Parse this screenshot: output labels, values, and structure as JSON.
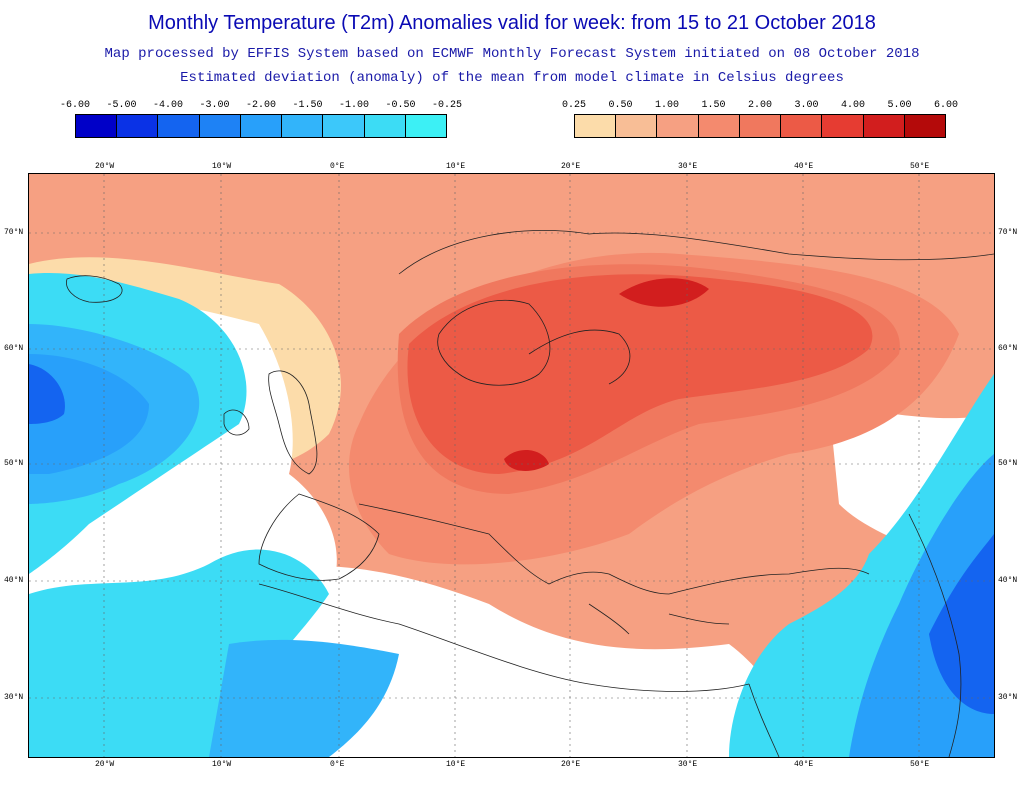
{
  "header": {
    "title": "Monthly Temperature (T2m) Anomalies valid for week: from 15 to 21 October 2018",
    "subtitle1": "Map processed by EFFIS System based on ECMWF Monthly Forecast System initiated on 08 October 2018",
    "subtitle2": "Estimated deviation (anomaly) of the mean from model climate in Celsius degrees"
  },
  "legend_cold": {
    "labels": [
      "-6.00",
      "-5.00",
      "-4.00",
      "-3.00",
      "-2.00",
      "-1.50",
      "-1.00",
      "-0.50",
      "-0.25"
    ],
    "colors": [
      "#0000c8",
      "#0a32e6",
      "#1464f0",
      "#1e82f5",
      "#28a0fa",
      "#32b4fa",
      "#3cc8fa",
      "#3cdcf5",
      "#3cf0f5"
    ]
  },
  "legend_warm": {
    "labels": [
      "0.25",
      "0.50",
      "1.00",
      "1.50",
      "2.00",
      "3.00",
      "4.00",
      "5.00",
      "6.00"
    ],
    "colors": [
      "#fcdcaa",
      "#f8be96",
      "#f6a082",
      "#f48a6e",
      "#f0785e",
      "#ec5a46",
      "#e63c32",
      "#d21e1e",
      "#b40a0a"
    ]
  },
  "map": {
    "lon_labels": [
      "20°W",
      "10°W",
      "0°E",
      "10°E",
      "20°E",
      "30°E",
      "40°E",
      "50°E"
    ],
    "lat_labels": [
      "70°N",
      "60°N",
      "50°N",
      "40°N",
      "30°N"
    ]
  }
}
